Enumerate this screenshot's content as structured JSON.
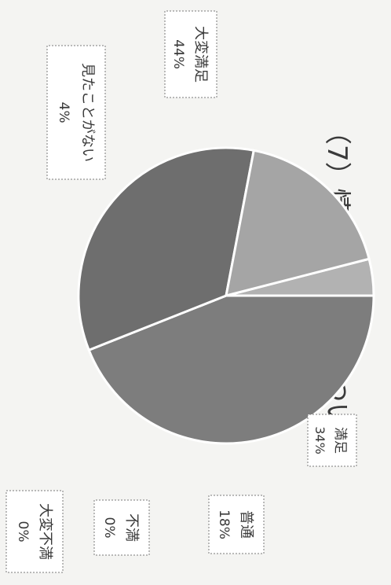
{
  "chart_data": {
    "type": "pie",
    "title": "（7）情報コーナーについて",
    "slices": [
      {
        "name": "大変満足",
        "pct_label": "44%",
        "value": 44,
        "color": "#7d7d7d"
      },
      {
        "name": "満足",
        "pct_label": "34%",
        "value": 34,
        "color": "#6e6e6e"
      },
      {
        "name": "普通",
        "pct_label": "18%",
        "value": 18,
        "color": "#a5a5a5"
      },
      {
        "name": "不満",
        "pct_label": "0%",
        "value": 0,
        "color": "#bdbdbd"
      },
      {
        "name": "大変不満",
        "pct_label": "0%",
        "value": 0,
        "color": "#c8c8c8"
      },
      {
        "name": "見たことがない",
        "pct_label": "4%",
        "value": 4,
        "color": "#b2b2b2"
      }
    ]
  }
}
